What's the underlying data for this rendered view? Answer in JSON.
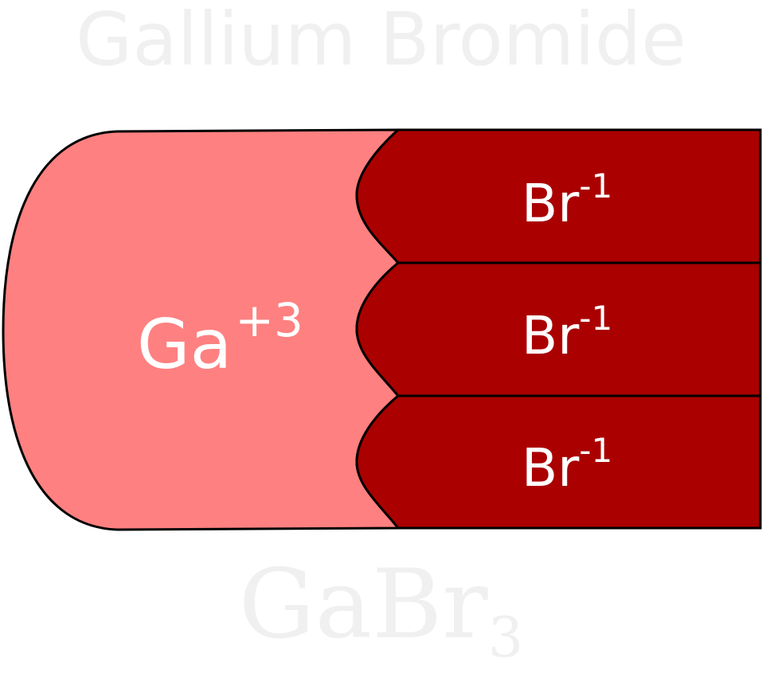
{
  "title": "Gallium Bromide",
  "cation": {
    "symbol": "Ga",
    "charge": "+3",
    "color": "#FF8080"
  },
  "anions": [
    {
      "symbol": "Br",
      "charge": "-1"
    },
    {
      "symbol": "Br",
      "charge": "-1"
    },
    {
      "symbol": "Br",
      "charge": "-1"
    }
  ],
  "anion_color": "#AA0000",
  "formula": {
    "base": "GaBr",
    "subscript": "3"
  }
}
